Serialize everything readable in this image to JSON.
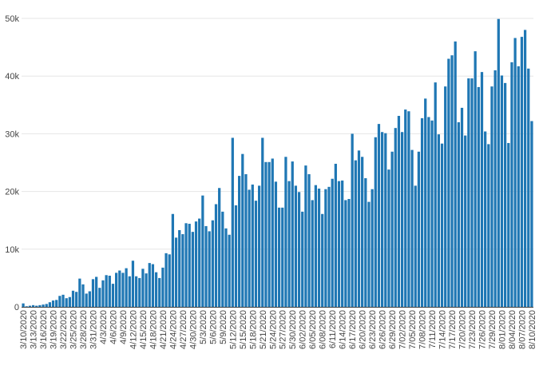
{
  "chart_data": {
    "type": "bar",
    "title": "",
    "xlabel": "",
    "ylabel": "",
    "ylim": [
      0,
      50000
    ],
    "yticks": [
      {
        "value": 0,
        "label": "0"
      },
      {
        "value": 10000,
        "label": "10k"
      },
      {
        "value": 20000,
        "label": "20k"
      },
      {
        "value": 30000,
        "label": "30k"
      },
      {
        "value": 40000,
        "label": "40k"
      },
      {
        "value": 50000,
        "label": "50k"
      }
    ],
    "x_tick_labels": [
      "3/10/2020",
      "3/13/2020",
      "3/16/2020",
      "3/19/2020",
      "3/22/2020",
      "3/25/2020",
      "3/28/2020",
      "3/31/2020",
      "4/3/2020",
      "4/6/2020",
      "4/9/2020",
      "4/12/2020",
      "4/15/2020",
      "4/18/2020",
      "4/21/2020",
      "4/24/2020",
      "4/27/2020",
      "4/30/2020",
      "5/3/2020",
      "5/6/2020",
      "5/9/2020",
      "5/12/2020",
      "5/15/2020",
      "5/18/2020",
      "5/21/2020",
      "5/24/2020",
      "5/27/2020",
      "5/30/2020",
      "6/02/2020",
      "6/05/2020",
      "6/08/2020",
      "6/11/2020",
      "6/14/2020",
      "6/17/2020",
      "6/20/2020",
      "6/23/2020",
      "6/26/2020",
      "6/29/2020",
      "7/02/2020",
      "7/05/2020",
      "7/08/2020",
      "7/11/2020",
      "7/14/2020",
      "7/17/2020",
      "7/20/2020",
      "7/23/2020",
      "7/26/2020",
      "7/29/2020",
      "8/01/2020",
      "8/04/2020",
      "8/07/2020",
      "8/10/2020"
    ],
    "grid": true,
    "bar_color": "#1f77b4",
    "values": [
      600,
      100,
      200,
      300,
      200,
      300,
      400,
      500,
      800,
      1100,
      1200,
      1900,
      2100,
      1500,
      1700,
      2800,
      2600,
      4900,
      3900,
      2300,
      2700,
      4800,
      5200,
      3300,
      4600,
      5500,
      5400,
      4000,
      5900,
      6300,
      5900,
      6700,
      5300,
      8000,
      5300,
      5000,
      6600,
      5800,
      7600,
      7400,
      6000,
      5000,
      6800,
      9300,
      9100,
      16100,
      12000,
      13300,
      12600,
      14500,
      14400,
      13000,
      14800,
      15300,
      19300,
      14000,
      13100,
      15000,
      17800,
      20600,
      16500,
      13600,
      12500,
      29300,
      17600,
      22700,
      26500,
      23000,
      20300,
      21200,
      18400,
      21000,
      29300,
      25100,
      25100,
      25700,
      21700,
      17200,
      17200,
      26000,
      21800,
      25200,
      21000,
      19900,
      16500,
      24500,
      23000,
      18500,
      21100,
      20500,
      16100,
      20400,
      20800,
      22200,
      24800,
      21800,
      21900,
      18500,
      18700,
      30000,
      25400,
      27100,
      26000,
      22300,
      18200,
      20400,
      29400,
      31700,
      30300,
      30100,
      23800,
      26900,
      31000,
      33100,
      30300,
      34200,
      33900,
      27200,
      21000,
      26900,
      32700,
      36100,
      32900,
      32300,
      38900,
      29900,
      28300,
      38200,
      43000,
      43600,
      46000,
      32000,
      34500,
      29700,
      39600,
      39600,
      44300,
      38100,
      40700,
      30400,
      28200,
      38200,
      41000,
      49900,
      40100,
      38800,
      28400,
      42400,
      46600,
      41700,
      46800,
      48000,
      41300,
      32200
    ]
  }
}
